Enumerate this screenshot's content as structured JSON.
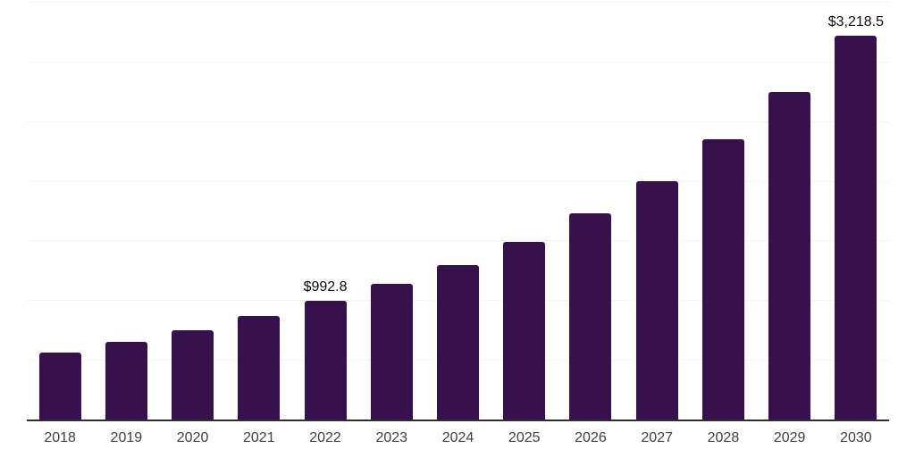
{
  "chart_data": {
    "type": "bar",
    "title": "",
    "xlabel": "",
    "ylabel": "",
    "categories": [
      "2018",
      "2019",
      "2020",
      "2021",
      "2022",
      "2023",
      "2024",
      "2025",
      "2026",
      "2027",
      "2028",
      "2029",
      "2030"
    ],
    "values": [
      560,
      650,
      748,
      865,
      992.8,
      1135,
      1295,
      1490,
      1725,
      1995,
      2345,
      2745,
      3218.5
    ],
    "data_labels": {
      "2022": "$992.8",
      "2030": "$3,218.5"
    },
    "ylim": [
      0,
      3500
    ],
    "grid_step": 500,
    "grid": "horizontal-only",
    "legend": "none",
    "y_tick_labels_visible": false,
    "colors": {
      "bar": "#36114C",
      "gridline": "#F4F4F6",
      "axis_line": "#2E2E2E",
      "tick_label": "#404040",
      "data_label": "#0D0D0D",
      "background": "#FFFFFF"
    }
  }
}
